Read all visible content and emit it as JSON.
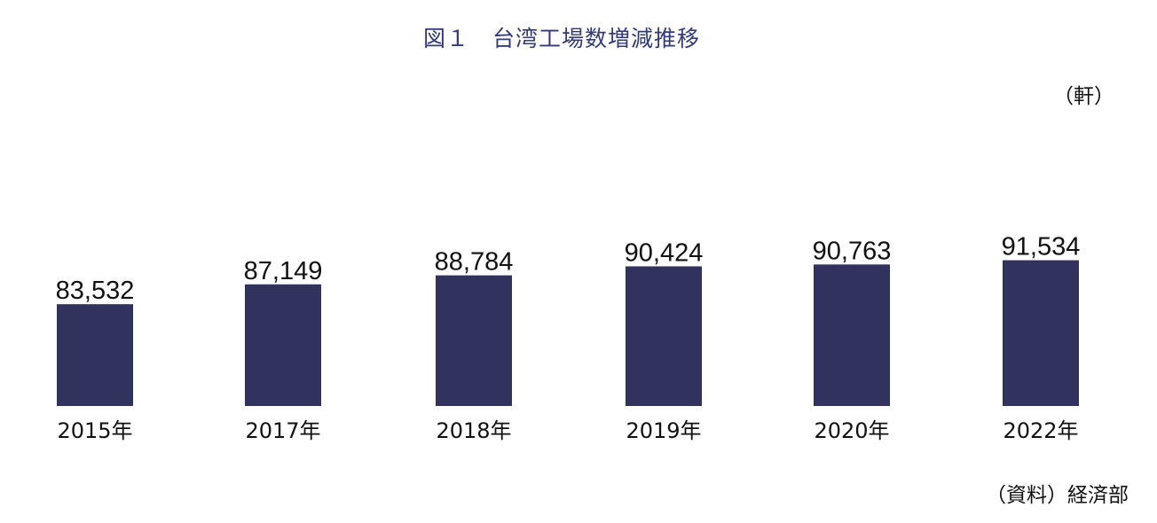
{
  "chart_data": {
    "type": "bar",
    "title": "図１　台湾工場数増減推移",
    "unit": "（軒）",
    "source": "（資料）経済部",
    "categories": [
      "2015年",
      "2017年",
      "2018年",
      "2019年",
      "2020年",
      "2022年"
    ],
    "values": [
      83532,
      87149,
      88784,
      90424,
      90763,
      91534
    ],
    "value_labels": [
      "83,532",
      "87,149",
      "88,784",
      "90,424",
      "90,763",
      "91,534"
    ],
    "bar_color": "#32325e",
    "title_color": "#333a7a",
    "ylim": [
      65000,
      95000
    ],
    "grid": false,
    "legend": "none"
  }
}
